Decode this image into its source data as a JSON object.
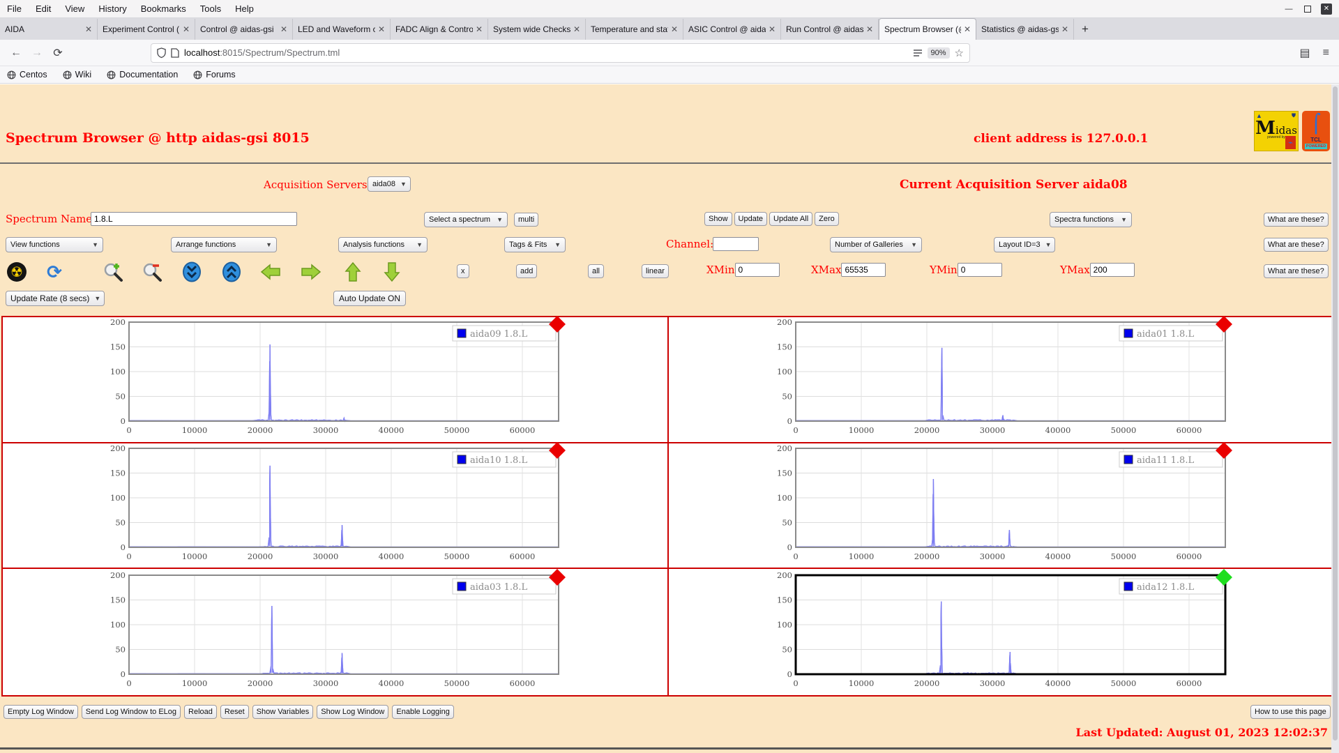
{
  "browser": {
    "menu_items": [
      "File",
      "Edit",
      "View",
      "History",
      "Bookmarks",
      "Tools",
      "Help"
    ],
    "tabs": [
      {
        "title": "AIDA",
        "active": false
      },
      {
        "title": "Experiment Control (",
        "active": false
      },
      {
        "title": "Control @ aidas-gsi",
        "active": false
      },
      {
        "title": "LED and Waveform c",
        "active": false
      },
      {
        "title": "FADC Align & Contro",
        "active": false
      },
      {
        "title": "System wide Checks",
        "active": false
      },
      {
        "title": "Temperature and stat",
        "active": false
      },
      {
        "title": "ASIC Control @ aidas",
        "active": false
      },
      {
        "title": "Run Control @ aidas-",
        "active": false
      },
      {
        "title": "Spectrum Browser (@",
        "active": true
      },
      {
        "title": "Statistics @ aidas-gsi",
        "active": false
      }
    ],
    "new_tab": "+",
    "url": {
      "host": "localhost",
      "path": ":8015/Spectrum/Spectrum.tml"
    },
    "zoom_badge": "90%",
    "bookmarks": [
      "Centos",
      "Wiki",
      "Documentation",
      "Forums"
    ]
  },
  "header": {
    "title": "Spectrum Browser @ http aidas-gsi 8015",
    "client": "client address is 127.0.0.1",
    "midas_logo": "Midas",
    "midas_powered": "powered by",
    "tcl_name": "TCL",
    "tcl_powered": "POWERED"
  },
  "controls": {
    "acq_servers_label": "Acquisition Servers",
    "acq_server_value": "aida08",
    "current_server": "Current Acquisition Server aida08",
    "spectrum_name_label": "Spectrum Name:",
    "spectrum_name_value": "1.8.L",
    "select_spectrum": "Select a spectrum",
    "multi_btn": "multi",
    "show_btns": [
      "Show",
      "Update",
      "Update All",
      "Zero"
    ],
    "spectra_functions": "Spectra functions",
    "what_are_these": "What are these?",
    "row3_selects": [
      "View functions",
      "Arrange functions",
      "Analysis functions",
      "Tags & Fits"
    ],
    "channel_label": "Channel:",
    "channel_value": "",
    "galleries_select": "Number of Galleries",
    "layout_select": "Layout ID=3",
    "small_btns": [
      "x",
      "add",
      "all",
      "linear"
    ],
    "range_fields": [
      {
        "label": "XMin",
        "value": "0"
      },
      {
        "label": "XMax",
        "value": "65535"
      },
      {
        "label": "YMin",
        "value": "0"
      },
      {
        "label": "YMax",
        "value": "200"
      }
    ],
    "update_rate": "Update Rate (8 secs)",
    "auto_update": "Auto Update ON",
    "toolbar_icons": [
      "radiation-icon",
      "refresh-icon",
      "zoom-in-icon",
      "zoom-out-icon",
      "compress-vertical-icon",
      "expand-vertical-icon",
      "arrow-left-icon",
      "arrow-right-icon",
      "arrow-up-icon",
      "arrow-down-icon"
    ]
  },
  "footer": {
    "log_buttons": [
      "Empty Log Window",
      "Send Log Window to ELog",
      "Reload",
      "Reset",
      "Show Variables",
      "Show Log Window",
      "Enable Logging"
    ],
    "help_btn": "How to use this page",
    "last_updated": "Last Updated: August 01, 2023 12:02:37"
  },
  "colors": {
    "page_bg": "#fbe6c3",
    "accent_red": "#ff0000",
    "grid_border": "#cc0000",
    "line": "#7d7df2",
    "legend_blue": "#0000ee",
    "marker_red": "#ea0000",
    "marker_green": "#1ede1e"
  },
  "chart_data": {
    "type": "line",
    "xlim": [
      0,
      65535
    ],
    "ylim": [
      0,
      200
    ],
    "x_ticks": [
      0,
      10000,
      20000,
      30000,
      40000,
      50000,
      60000
    ],
    "y_ticks": [
      0,
      50,
      100,
      150,
      200
    ],
    "grid": true,
    "legend_position": "top-right",
    "panels": [
      {
        "legend": "aida09 1.8.L",
        "status_marker": "red",
        "selected": false,
        "noise_range": [
          19400,
          33300
        ],
        "peaks": [
          {
            "x": 21500,
            "h": 155
          },
          {
            "x": 32800,
            "h": 6
          }
        ]
      },
      {
        "legend": "aida01 1.8.L",
        "status_marker": "red",
        "selected": false,
        "noise_range": [
          20300,
          33300
        ],
        "peaks": [
          {
            "x": 22300,
            "h": 148
          },
          {
            "x": 31600,
            "h": 12
          }
        ]
      },
      {
        "legend": "aida10 1.8.L",
        "status_marker": "red",
        "selected": false,
        "noise_range": [
          20300,
          33300
        ],
        "peaks": [
          {
            "x": 21500,
            "h": 165
          },
          {
            "x": 32500,
            "h": 45
          }
        ]
      },
      {
        "legend": "aida11 1.8.L",
        "status_marker": "red",
        "selected": false,
        "noise_range": [
          20300,
          33300
        ],
        "peaks": [
          {
            "x": 21000,
            "h": 138
          },
          {
            "x": 32600,
            "h": 35
          }
        ]
      },
      {
        "legend": "aida03 1.8.L",
        "status_marker": "red",
        "selected": false,
        "noise_range": [
          20300,
          33300
        ],
        "peaks": [
          {
            "x": 21800,
            "h": 138
          },
          {
            "x": 32500,
            "h": 43
          }
        ]
      },
      {
        "legend": "aida12 1.8.L",
        "status_marker": "green",
        "selected": true,
        "noise_range": [
          20300,
          33300
        ],
        "peaks": [
          {
            "x": 22200,
            "h": 147
          },
          {
            "x": 32700,
            "h": 45
          }
        ]
      }
    ]
  }
}
